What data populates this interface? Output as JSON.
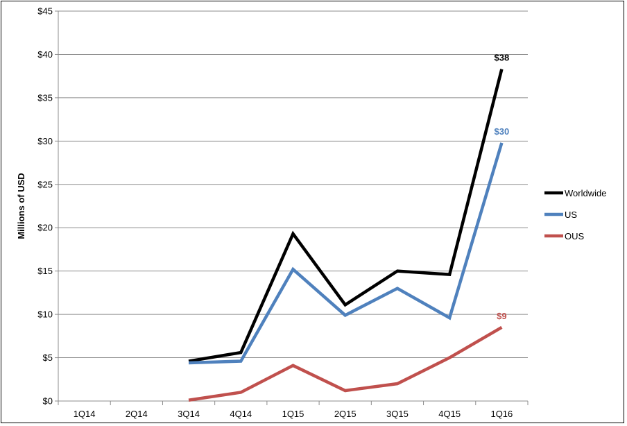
{
  "chart_data": {
    "type": "line",
    "title": "",
    "xlabel": "",
    "ylabel": "Millions of USD",
    "categories": [
      "1Q14",
      "2Q14",
      "3Q14",
      "4Q14",
      "1Q15",
      "2Q15",
      "3Q15",
      "4Q15",
      "1Q16"
    ],
    "y_tick_labels": [
      "$0",
      "$5",
      "$10",
      "$15",
      "$20",
      "$25",
      "$30",
      "$35",
      "$40",
      "$45"
    ],
    "ylim": [
      0,
      45
    ],
    "y_step": 5,
    "grid": "horizontal",
    "legend_position": "right",
    "series": [
      {
        "name": "Worldwide",
        "color": "#000000",
        "values": [
          null,
          null,
          4.6,
          5.6,
          19.3,
          11.1,
          15.0,
          14.6,
          38.3
        ],
        "end_label": "$38"
      },
      {
        "name": "US",
        "color": "#4f81bd",
        "values": [
          null,
          null,
          4.4,
          4.6,
          15.2,
          9.9,
          13.0,
          9.6,
          29.8
        ],
        "end_label": "$30"
      },
      {
        "name": "OUS",
        "color": "#c0504d",
        "values": [
          null,
          null,
          0.1,
          1.0,
          4.1,
          1.2,
          2.0,
          5.0,
          8.5
        ],
        "end_label": "$9"
      }
    ]
  }
}
